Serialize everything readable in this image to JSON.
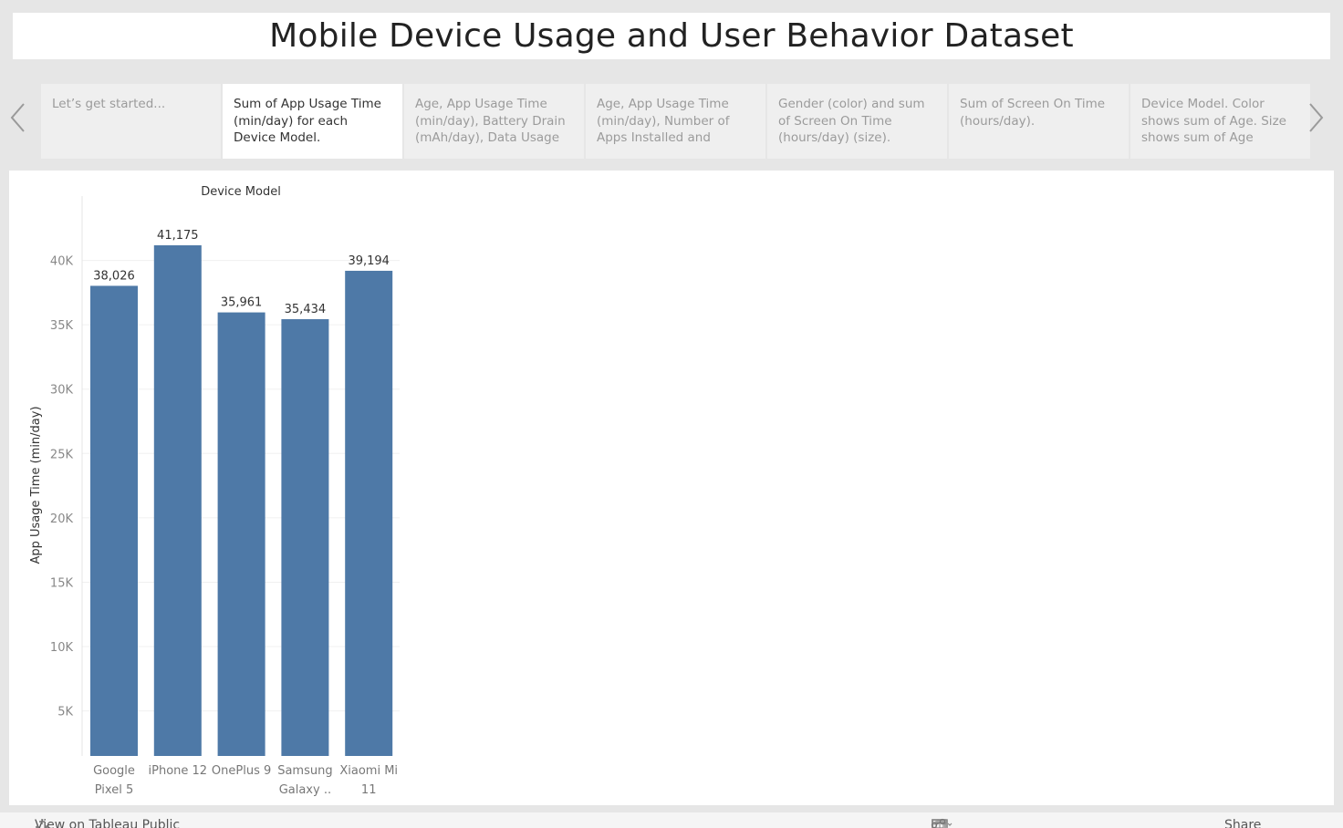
{
  "title": "Mobile Device Usage and User Behavior Dataset",
  "story": {
    "points": [
      {
        "label": "Let’s get started...",
        "active": false
      },
      {
        "label": "Sum of App Usage Time (min/day) for each Device Model.",
        "active": true
      },
      {
        "label": "Age, App Usage Time (min/day), Battery Drain (mAh/day), Data Usage",
        "active": false
      },
      {
        "label": "Age, App Usage Time (min/day), Number of Apps Installed and Screen",
        "active": false
      },
      {
        "label": "Gender (color) and sum of Screen On Time (hours/day) (size).",
        "active": false
      },
      {
        "label": "Sum of Screen On Time (hours/day).",
        "active": false
      },
      {
        "label": "Device Model.  Color shows sum of Age.  Size shows sum of Age",
        "active": false
      }
    ],
    "prev_icon": "chevron-left-icon",
    "next_icon": "chevron-right-icon"
  },
  "chart_data": {
    "type": "bar",
    "header": "Device Model",
    "ylabel": "App Usage Time (min/day)",
    "categories": [
      [
        "Google",
        "Pixel 5"
      ],
      [
        "iPhone 12"
      ],
      [
        "OnePlus 9"
      ],
      [
        "Samsung",
        "Galaxy .."
      ],
      [
        "Xiaomi Mi",
        "11"
      ]
    ],
    "values": [
      38026,
      41175,
      35961,
      35434,
      39194
    ],
    "value_labels": [
      "38,026",
      "41,175",
      "35,961",
      "35,434",
      "39,194"
    ],
    "yticks": [
      5000,
      10000,
      15000,
      20000,
      25000,
      30000,
      35000,
      40000
    ],
    "ytick_labels": [
      "5K",
      "10K",
      "15K",
      "20K",
      "25K",
      "30K",
      "35K",
      "40K"
    ],
    "ylim": [
      1500,
      45000
    ],
    "color": "#4e79a7",
    "grid": true
  },
  "footer": {
    "view_link": "View on Tableau Public",
    "share_label": "Share",
    "tools": [
      "undo-icon",
      "redo-icon",
      "revert-icon",
      "forward-icon",
      "pause-icon",
      "device-preview-icon",
      "fullscreen-icon"
    ]
  }
}
